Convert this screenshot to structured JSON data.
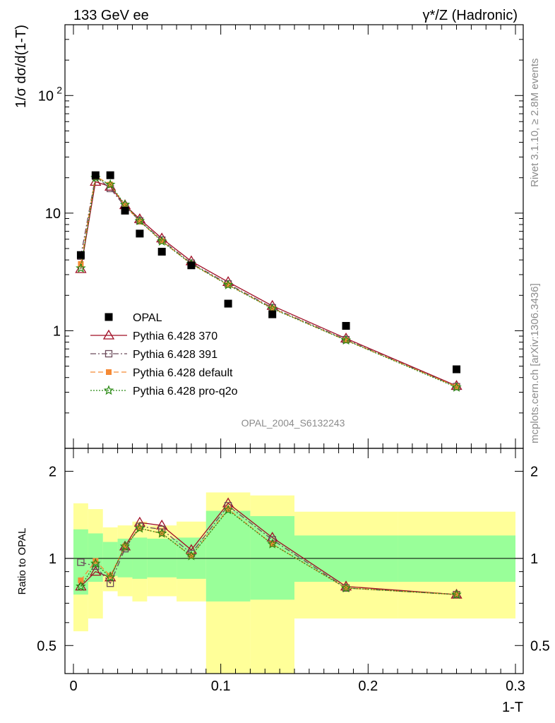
{
  "header": {
    "left": "133 GeV ee",
    "right": "γ*/Z (Hadronic)"
  },
  "side": {
    "rivet": "Rivet 3.1.10, ≥ 2.8M events",
    "mcplots": "mcplots.cern.ch [arXiv:1306.3436]"
  },
  "watermark": "OPAL_2004_S6132243",
  "colors": {
    "data": "#000000",
    "p370": "#a00e25",
    "p391": "#6b4a5a",
    "pdefault": "#f58a35",
    "pq2o": "#2a8a14",
    "band_inner": "#99ff99",
    "band_outer": "#ffff99"
  },
  "chart_data": [
    {
      "type": "scatter",
      "panel": "main",
      "ylabel": "1/σ dσ/d(1-T)",
      "xlabel": "1-T",
      "xlim": [
        0,
        0.3
      ],
      "ylim": [
        0.1,
        400
      ],
      "yscale": "log",
      "ytick_labels": [
        "1",
        "10",
        "10^2"
      ],
      "xtick_labels": [
        "0",
        "0.1",
        "0.2",
        "0.3"
      ],
      "legend_position": "lower-left",
      "x": [
        0.005,
        0.015,
        0.025,
        0.035,
        0.045,
        0.06,
        0.08,
        0.105,
        0.135,
        0.185,
        0.26
      ],
      "series": [
        {
          "name": "OPAL",
          "key": "data",
          "marker": "square",
          "values": [
            4.4,
            21.0,
            21.0,
            10.5,
            6.7,
            4.7,
            3.6,
            1.7,
            1.38,
            1.1,
            0.47
          ]
        },
        {
          "name": "Pythia 6.428 370",
          "key": "p370",
          "marker": "triangle",
          "line": "solid",
          "values": [
            3.35,
            18.5,
            16.8,
            11.7,
            8.9,
            6.1,
            3.9,
            2.6,
            1.63,
            0.86,
            0.34
          ]
        },
        {
          "name": "Pythia 6.428 391",
          "key": "p391",
          "marker": "open-square",
          "line": "dashdot",
          "values": [
            4.3,
            20.5,
            16.2,
            11.4,
            8.6,
            5.9,
            3.75,
            2.5,
            1.57,
            0.84,
            0.335
          ]
        },
        {
          "name": "Pythia 6.428 default",
          "key": "pdefault",
          "marker": "filled-square",
          "line": "dashed",
          "values": [
            3.7,
            20.6,
            17.5,
            11.6,
            8.5,
            5.8,
            3.7,
            2.45,
            1.55,
            0.83,
            0.335
          ]
        },
        {
          "name": "Pythia 6.428 pro-q2o",
          "key": "pq2o",
          "marker": "star",
          "line": "dotted",
          "values": [
            3.4,
            20.0,
            17.5,
            11.8,
            8.6,
            5.75,
            3.7,
            2.45,
            1.54,
            0.83,
            0.33
          ]
        }
      ]
    },
    {
      "type": "line",
      "panel": "ratio",
      "ylabel": "Ratio to OPAL",
      "xlabel": "1-T",
      "xlim": [
        0,
        0.3
      ],
      "ylim": [
        0.4,
        2.4
      ],
      "yscale": "log",
      "ytick_labels": [
        "0.5",
        "1",
        "2"
      ],
      "x": [
        0.005,
        0.015,
        0.025,
        0.035,
        0.045,
        0.06,
        0.08,
        0.105,
        0.135,
        0.185,
        0.26
      ],
      "bins": [
        [
          0,
          0.01
        ],
        [
          0.01,
          0.02
        ],
        [
          0.02,
          0.03
        ],
        [
          0.03,
          0.04
        ],
        [
          0.04,
          0.05
        ],
        [
          0.05,
          0.07
        ],
        [
          0.07,
          0.09
        ],
        [
          0.09,
          0.12
        ],
        [
          0.12,
          0.15
        ],
        [
          0.15,
          0.22
        ],
        [
          0.22,
          0.3
        ]
      ],
      "band_inner": [
        [
          0.75,
          1.26
        ],
        [
          0.83,
          1.22
        ],
        [
          0.87,
          1.14
        ],
        [
          0.86,
          1.17
        ],
        [
          0.85,
          1.18
        ],
        [
          0.86,
          1.17
        ],
        [
          0.85,
          1.18
        ],
        [
          0.71,
          1.46
        ],
        [
          0.72,
          1.4
        ],
        [
          0.83,
          1.2
        ],
        [
          0.83,
          1.2
        ]
      ],
      "band_outer": [
        [
          0.56,
          1.55
        ],
        [
          0.62,
          1.48
        ],
        [
          0.77,
          1.28
        ],
        [
          0.74,
          1.3
        ],
        [
          0.71,
          1.34
        ],
        [
          0.74,
          1.3
        ],
        [
          0.71,
          1.34
        ],
        [
          0.3,
          1.69
        ],
        [
          0.36,
          1.65
        ],
        [
          0.62,
          1.45
        ],
        [
          0.62,
          1.45
        ]
      ],
      "series": [
        {
          "name": "Pythia 6.428 370",
          "key": "p370",
          "marker": "triangle",
          "line": "solid",
          "values": [
            0.8,
            0.9,
            0.86,
            1.1,
            1.33,
            1.3,
            1.07,
            1.55,
            1.18,
            0.8,
            0.75
          ]
        },
        {
          "name": "Pythia 6.428 391",
          "key": "p391",
          "marker": "open-square",
          "line": "dashdot",
          "values": [
            0.97,
            0.94,
            0.82,
            1.08,
            1.29,
            1.26,
            1.04,
            1.52,
            1.16,
            0.79,
            0.75
          ]
        },
        {
          "name": "Pythia 6.428 default",
          "key": "pdefault",
          "marker": "filled-square",
          "line": "dashed",
          "values": [
            0.84,
            0.98,
            0.87,
            1.1,
            1.27,
            1.22,
            1.02,
            1.48,
            1.12,
            0.79,
            0.75
          ]
        },
        {
          "name": "Pythia 6.428 pro-q2o",
          "key": "pq2o",
          "marker": "star",
          "line": "dotted",
          "values": [
            0.8,
            0.96,
            0.86,
            1.1,
            1.27,
            1.22,
            1.02,
            1.47,
            1.12,
            0.79,
            0.75
          ]
        }
      ]
    }
  ]
}
